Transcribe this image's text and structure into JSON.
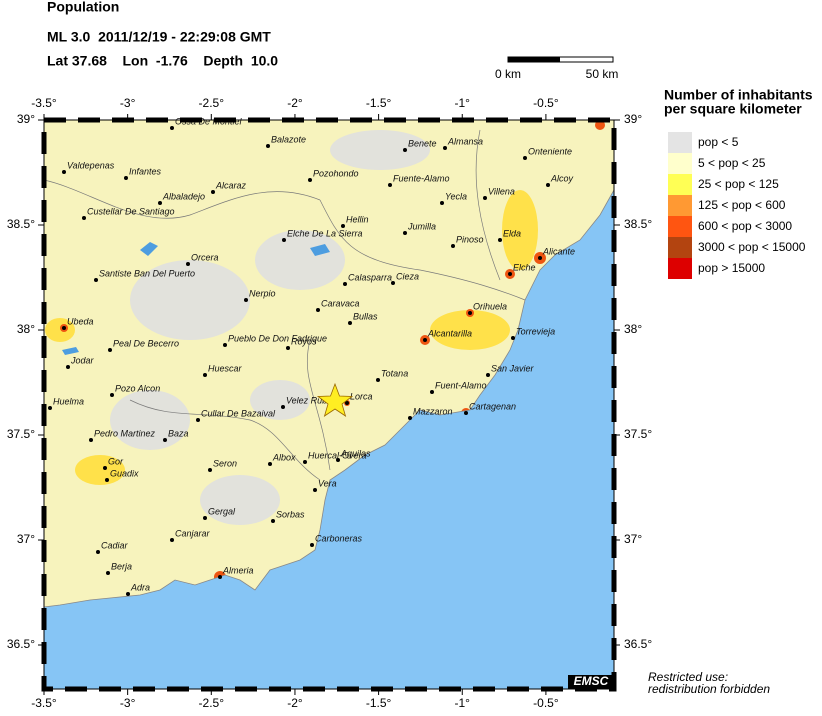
{
  "header": {
    "title": "Population",
    "event": "ML 3.0  2011/12/19 - 22:29:08 GMT",
    "location": "Lat 37.68    Lon  -1.76    Depth  10.0"
  },
  "scale": {
    "start": "0 km",
    "end": "50 km"
  },
  "lon_ticks": [
    {
      "value": -3.5,
      "label": "-3.5°"
    },
    {
      "value": -3,
      "label": "-3°"
    },
    {
      "value": -2.5,
      "label": "-2.5°"
    },
    {
      "value": -2,
      "label": "-2°"
    },
    {
      "value": -1.5,
      "label": "-1.5°"
    },
    {
      "value": -1,
      "label": "-1°"
    },
    {
      "value": -0.5,
      "label": "-0.5°"
    }
  ],
  "lat_ticks": [
    {
      "value": 39,
      "label": "39°"
    },
    {
      "value": 38.5,
      "label": "38.5°"
    },
    {
      "value": 38,
      "label": "38°"
    },
    {
      "value": 37.5,
      "label": "37.5°"
    },
    {
      "value": 37,
      "label": "37°"
    },
    {
      "value": 36.5,
      "label": "36.5°"
    }
  ],
  "legend": {
    "title_line1": "Number of inhabitants",
    "title_line2": "per square kilometer",
    "items": [
      {
        "label": "pop < 5",
        "color": "#e4e4e4"
      },
      {
        "label": "5 < pop < 25",
        "color": "#ffffcc"
      },
      {
        "label": "25 < pop < 125",
        "color": "#ffff55"
      },
      {
        "label": "125 < pop < 600",
        "color": "#ff9933"
      },
      {
        "label": "600 < pop < 3000",
        "color": "#ff5511"
      },
      {
        "label": "3000 < pop < 15000",
        "color": "#b34410"
      },
      {
        "label": "pop > 15000",
        "color": "#dd0000"
      }
    ]
  },
  "cities": [
    "Ossa De Montiel",
    "Balazote",
    "Benete",
    "Almansa",
    "Onteniente",
    "Valdepenas",
    "Infantes",
    "Pozohondo",
    "Fuente-Alamo",
    "Alcaraz",
    "Alcoy",
    "Albaladejo",
    "Yecla",
    "Villena",
    "Custellar De Santiago",
    "Hellin",
    "Jumilla",
    "Elche De La Sierra",
    "Elda",
    "Pinoso",
    "Alicante",
    "Orcera",
    "Santiste Ban Del Puerto",
    "Cieza",
    "Calasparra",
    "Elche",
    "Nerpio",
    "Orihuela",
    "Caravaca",
    "Bullas",
    "Ubeda",
    "Alcantarilla",
    "Torrevieja",
    "Peal De Becerro",
    "Pueblo De Don Fadrique",
    "Royos",
    "Jodar",
    "Huescar",
    "San Javier",
    "Totana",
    "Fuent-Alamo",
    "Pozo Alcon",
    "Lorca",
    "Velez Rubio",
    "Huelma",
    "Mazzaron",
    "Cartagenan",
    "Cullar De Bazaival",
    "Pedro Martinez",
    "Baza",
    "Aguilas",
    "Albox",
    "Huercal-Overa",
    "Gor",
    "Seron",
    "Guadix",
    "Vera",
    "Gergal",
    "Sorbas",
    "Carboneras",
    "Canjarar",
    "Cadiar",
    "Berja",
    "Almeria",
    "Adra"
  ],
  "badge": "EMSC",
  "notice": {
    "line1": "Restricted use:",
    "line2": "redistribution forbidden"
  }
}
